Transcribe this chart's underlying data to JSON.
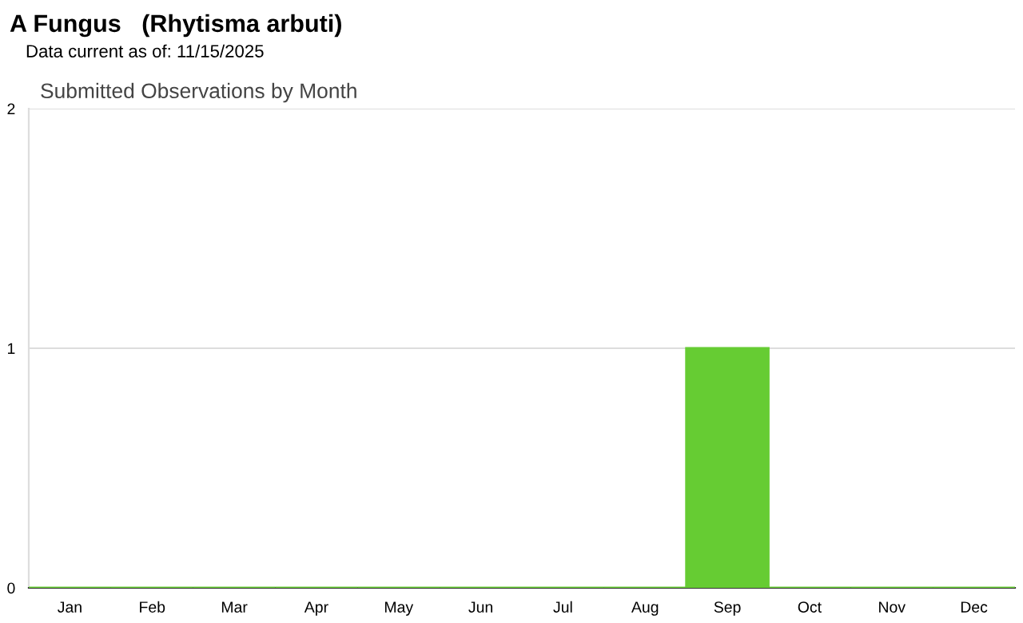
{
  "chart_data": {
    "type": "bar",
    "title": "A Fungus   (Rhytisma arbuti)",
    "subtitle": "Data current as of: 11/15/2025",
    "annotations": [
      "Submitted Observations by Month"
    ],
    "categories": [
      "Jan",
      "Feb",
      "Mar",
      "Apr",
      "May",
      "Jun",
      "Jul",
      "Aug",
      "Sep",
      "Oct",
      "Nov",
      "Dec"
    ],
    "values": [
      0,
      0,
      0,
      0,
      0,
      0,
      0,
      0,
      1,
      0,
      0,
      0
    ],
    "color": "#66cc33",
    "ylim": [
      0,
      2
    ],
    "yticks": [
      0,
      1,
      2
    ],
    "grid": "y"
  }
}
